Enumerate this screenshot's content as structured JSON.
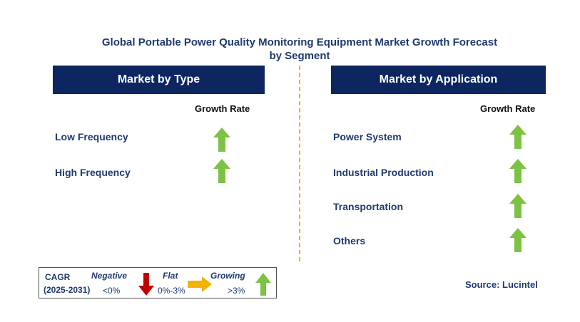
{
  "title_line1": "Global Portable Power Quality Monitoring Equipment Market Growth Forecast",
  "title_line2": "by Segment",
  "left_panel": {
    "header": "Market by Type",
    "growth_label": "Growth Rate",
    "rows": [
      {
        "label": "Low Frequency",
        "trend": "growing"
      },
      {
        "label": "High Frequency",
        "trend": "growing"
      }
    ]
  },
  "right_panel": {
    "header": "Market by Application",
    "growth_label": "Growth Rate",
    "rows": [
      {
        "label": "Power System",
        "trend": "growing"
      },
      {
        "label": "Industrial Production",
        "trend": "growing"
      },
      {
        "label": "Transportation",
        "trend": "growing"
      },
      {
        "label": "Others",
        "trend": "growing"
      }
    ]
  },
  "legend": {
    "cagr_label": "CAGR",
    "period": "(2025-2031)",
    "negative_label": "Negative",
    "negative_value": "<0%",
    "flat_label": "Flat",
    "flat_value": "0%-3%",
    "growing_label": "Growing",
    "growing_value": ">3%"
  },
  "source": "Source: Lucintel",
  "colors": {
    "header_bg": "#0d2660",
    "growing": "#7cc243",
    "negative": "#c00000",
    "flat": "#f2b400",
    "divider": "#f2b400"
  }
}
